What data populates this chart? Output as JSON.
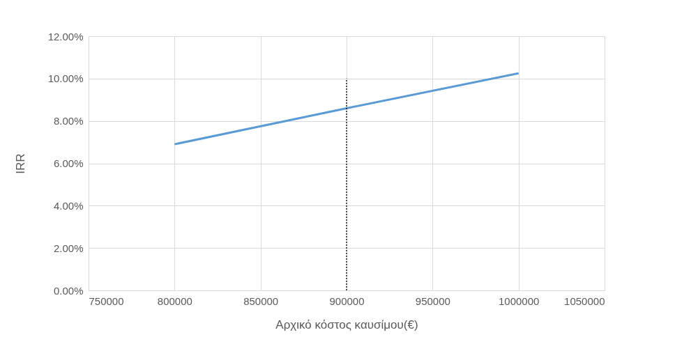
{
  "chart_data": {
    "type": "line",
    "xlabel": "Αρχικό κόστος καυσίμου(€)",
    "ylabel": "IRR",
    "xlim": [
      750000,
      1050000
    ],
    "xticks": [
      750000,
      800000,
      850000,
      900000,
      950000,
      1000000,
      1050000
    ],
    "ylim": [
      0,
      0.12
    ],
    "yticks": [
      {
        "value": 0,
        "label": "0.00%"
      },
      {
        "value": 0.02,
        "label": "2.00%"
      },
      {
        "value": 0.04,
        "label": "4.00%"
      },
      {
        "value": 0.06,
        "label": "6.00%"
      },
      {
        "value": 0.08,
        "label": "8.00%"
      },
      {
        "value": 0.1,
        "label": "10.00%"
      },
      {
        "value": 0.12,
        "label": "12.00%"
      }
    ],
    "grid": true,
    "series": [
      {
        "color": "#5b9bd5",
        "x": [
          800000,
          900000,
          1000000
        ],
        "values": [
          0.069,
          0.086,
          0.1025
        ],
        "line_style": "solid"
      },
      {
        "color": "#000000",
        "x": [
          900000,
          900000
        ],
        "values": [
          0,
          0.1
        ],
        "line_style": "dotted"
      }
    ]
  }
}
